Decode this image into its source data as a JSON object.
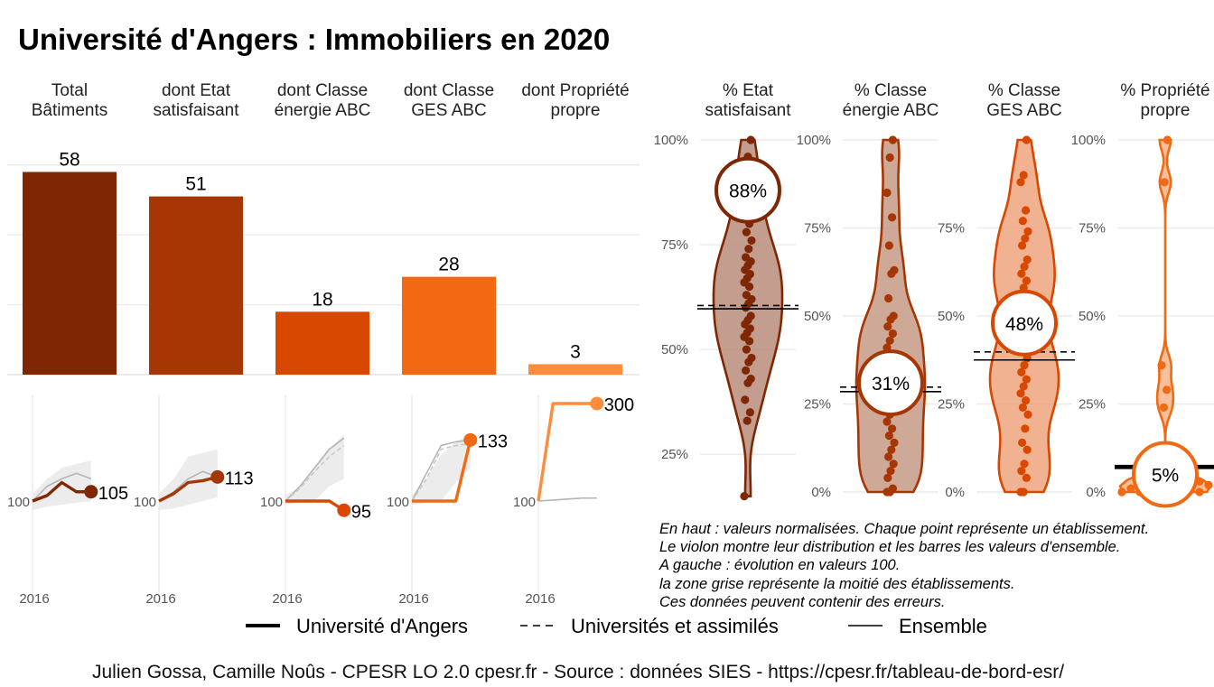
{
  "title": "Université d'Angers  :  Immobiliers en 2020",
  "colors": [
    "#7f2704",
    "#a63603",
    "#d94801",
    "#f16913",
    "#fd8d3c"
  ],
  "chart_data": [
    {
      "type": "bar",
      "categories": [
        "Total\nBâtiments",
        "dont Etat\nsatisfaisant",
        "dont Classe\nénergie ABC",
        "dont Classe\nGES ABC",
        "dont Propriété\npropre"
      ],
      "values": [
        58,
        51,
        18,
        28,
        3
      ],
      "value_labels": [
        "58",
        "51",
        "18",
        "28",
        "3"
      ],
      "ylim": [
        0,
        62
      ]
    },
    {
      "type": "line",
      "panels": [
        {
          "x_tick": "2016",
          "start_label": "100",
          "end_label": "105",
          "values": [
            100,
            103,
            110,
            105,
            105
          ],
          "series_grey": [
            [
              100,
              108,
              112,
              115,
              112
            ]
          ],
          "band": [
            [
              95,
              104
            ],
            [
              97,
              112
            ],
            [
              98,
              118
            ],
            [
              99,
              120
            ],
            [
              100,
              122
            ]
          ]
        },
        {
          "x_tick": "2016",
          "start_label": "100",
          "end_label": "113",
          "values": [
            100,
            104,
            110,
            111,
            113
          ],
          "series_grey": [
            [
              100,
              105,
              112,
              116,
              113
            ]
          ],
          "band": [
            [
              95,
              104
            ],
            [
              96,
              112
            ],
            [
              98,
              124
            ],
            [
              100,
              126
            ],
            [
              102,
              128
            ]
          ]
        },
        {
          "x_tick": "2016",
          "start_label": "100",
          "end_label": "95",
          "values": [
            100,
            100,
            100,
            100,
            95
          ],
          "series_grey": [
            [
              100,
              108,
              118,
              128,
              134
            ],
            [
              100,
              107,
              116,
              124,
              130
            ]
          ],
          "band": [
            [
              98,
              103
            ],
            [
              99,
              108
            ],
            [
              100,
              118
            ],
            [
              108,
              128
            ],
            [
              112,
              136
            ]
          ]
        },
        {
          "x_tick": "2016",
          "start_label": "100",
          "end_label": "133",
          "values": [
            100,
            100,
            100,
            100,
            133
          ],
          "series_grey": [
            [
              100,
              115,
              130,
              132,
              133
            ],
            [
              100,
              112,
              128,
              130,
              131
            ]
          ],
          "band": [
            [
              98,
              103
            ],
            [
              99,
              112
            ],
            [
              100,
              125
            ],
            [
              110,
              132
            ],
            [
              118,
              136
            ]
          ]
        },
        {
          "x_tick": "2016",
          "start_label": "100",
          "end_label": "300",
          "values": [
            100,
            300,
            300,
            300,
            300
          ],
          "series_grey": [
            [
              100,
              102,
              104,
              106,
              106
            ]
          ],
          "band": []
        }
      ]
    },
    {
      "type": "violin",
      "panels": [
        {
          "label": "% Etat\nsatisfaisant",
          "ticks": [
            "25%",
            "50%",
            "75%",
            "100%"
          ],
          "ylim": [
            0.16,
            1.0
          ],
          "highlight": 0.88,
          "highlight_label": "88%",
          "ensemble": 0.597,
          "universites": 0.605,
          "points": [
            0.15,
            0.33,
            0.35,
            0.38,
            0.42,
            0.43,
            0.45,
            0.47,
            0.48,
            0.5,
            0.52,
            0.53,
            0.54,
            0.55,
            0.56,
            0.57,
            0.58,
            0.6,
            0.61,
            0.62,
            0.63,
            0.65,
            0.66,
            0.67,
            0.68,
            0.69,
            0.7,
            0.71,
            0.72,
            0.74,
            0.76,
            0.78,
            0.8,
            0.82,
            0.86,
            0.88,
            0.92,
            0.96,
            1.0
          ]
        },
        {
          "label": "% Classe\nénergie ABC",
          "ticks": [
            "0%",
            "25%",
            "50%",
            "75%",
            "100%"
          ],
          "ylim": [
            0,
            1.0
          ],
          "highlight": 0.31,
          "highlight_label": "31%",
          "ensemble": 0.285,
          "universites": 0.298,
          "points": [
            0.0,
            0.0,
            0.01,
            0.04,
            0.06,
            0.08,
            0.1,
            0.12,
            0.14,
            0.16,
            0.18,
            0.2,
            0.22,
            0.24,
            0.26,
            0.28,
            0.3,
            0.31,
            0.33,
            0.35,
            0.37,
            0.39,
            0.41,
            0.43,
            0.45,
            0.47,
            0.49,
            0.5,
            0.55,
            0.62,
            0.63,
            0.7,
            0.78,
            0.85,
            0.95,
            1.0
          ]
        },
        {
          "label": "% Classe\nGES ABC",
          "ticks": [
            "0%",
            "25%",
            "50%",
            "75%"
          ],
          "ylim": [
            0,
            1.0
          ],
          "highlight": 0.48,
          "highlight_label": "48%",
          "ensemble": 0.375,
          "universites": 0.398,
          "points": [
            0.0,
            0.0,
            0.04,
            0.06,
            0.08,
            0.12,
            0.14,
            0.18,
            0.22,
            0.24,
            0.26,
            0.28,
            0.3,
            0.32,
            0.34,
            0.36,
            0.38,
            0.4,
            0.42,
            0.46,
            0.5,
            0.52,
            0.56,
            0.58,
            0.6,
            0.62,
            0.64,
            0.66,
            0.7,
            0.72,
            0.74,
            0.77,
            0.8,
            0.88,
            0.9,
            1.0
          ]
        },
        {
          "label": "% Propriété\npropre",
          "ticks": [
            "0%",
            "25%",
            "50%",
            "75%",
            "100%"
          ],
          "ylim": [
            0,
            1.0
          ],
          "highlight": 0.05,
          "highlight_label": "5%",
          "ensemble": 0.067,
          "universites": 0.072,
          "points": [
            0.0,
            0.0,
            0.0,
            0.01,
            0.01,
            0.02,
            0.02,
            0.03,
            0.05,
            0.24,
            0.29,
            0.36,
            0.88,
            1.0
          ]
        }
      ]
    }
  ],
  "notes": [
    "En haut : valeurs normalisées. Chaque point représente un établissement.",
    "Le violon montre leur distribution et les barres les valeurs d'ensemble.",
    "A gauche : évolution en valeurs 100.",
    "la zone grise représente la moitié des établissements.",
    "Ces données peuvent contenir des erreurs."
  ],
  "legend": [
    "Université d'Angers",
    "Universités et assimilés",
    "Ensemble"
  ],
  "caption": "Julien Gossa, Camille Noûs - CPESR LO 2.0 cpesr.fr - Source : données SIES - https://cpesr.fr/tableau-de-bord-esr/"
}
